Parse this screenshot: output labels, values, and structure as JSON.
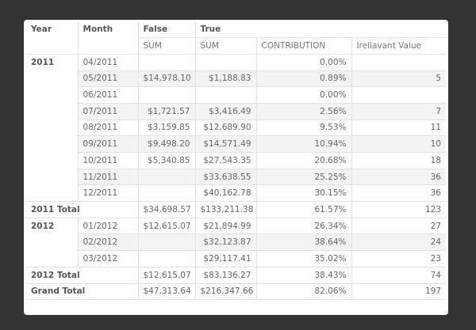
{
  "header": {
    "top": [
      "Year",
      "Month",
      "False",
      "True"
    ],
    "sub": [
      "SUM",
      "SUM",
      "CONTRIBUTION",
      "Irellavant Value"
    ]
  },
  "groups": [
    {
      "year": "2011",
      "rows": [
        [
          "04/2011",
          null,
          null,
          "0.00%",
          null
        ],
        [
          "05/2011",
          "$14,978.10",
          "$1,188.83",
          "0.89%",
          "5"
        ],
        [
          "06/2011",
          null,
          null,
          "0.00%",
          null
        ],
        [
          "07/2011",
          "$1,721.57",
          "$3,416.49",
          "2.56%",
          "7"
        ],
        [
          "08/2011",
          "$3,159.85",
          "$12,689.90",
          "9.53%",
          "11"
        ],
        [
          "09/2011",
          "$9,498.20",
          "$14,571.49",
          "10.94%",
          "10"
        ],
        [
          "10/2011",
          "$5,340.85",
          "$27,543.35",
          "20.68%",
          "18"
        ],
        [
          "11/2011",
          null,
          "$33,638.55",
          "25.25%",
          "36"
        ],
        [
          "12/2011",
          null,
          "$40,162.78",
          "30.15%",
          "36"
        ]
      ],
      "total": [
        "2011 Total",
        "$34,698.57",
        "$133,211.38",
        "61.57%",
        "123"
      ]
    },
    {
      "year": "2012",
      "rows": [
        [
          "01/2012",
          "$12,615.07",
          "$21,894.99",
          "26.34%",
          "27"
        ],
        [
          "02/2012",
          null,
          "$32,123.87",
          "38.64%",
          "24"
        ],
        [
          "03/2012",
          null,
          "$29,117.41",
          "35.02%",
          "23"
        ]
      ],
      "total": [
        "2012 Total",
        "$12,615.07",
        "$83,136.27",
        "38.43%",
        "74"
      ]
    }
  ],
  "grand_total": [
    "Grand Total",
    "$47,313.64",
    "$216,347.66",
    "82.06%",
    "197"
  ]
}
